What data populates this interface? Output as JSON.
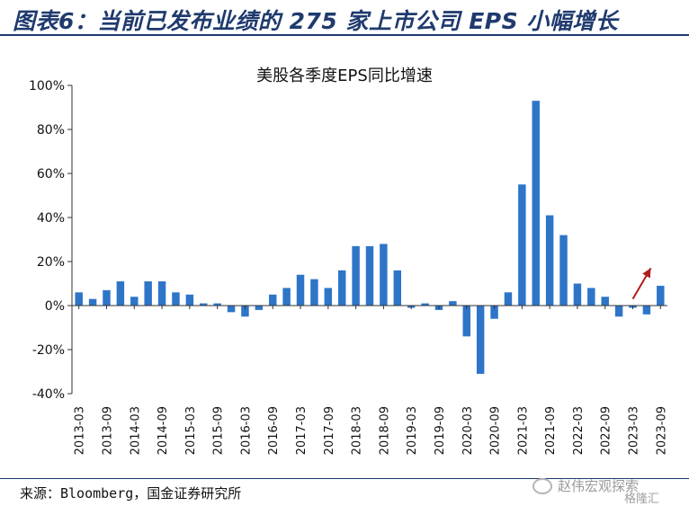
{
  "header": {
    "title": "图表6：当前已发布业绩的 275 家上市公司 EPS 小幅增长"
  },
  "chart_data": {
    "type": "bar",
    "title": "美股各季度EPS同比增速",
    "xlabel": "",
    "ylabel": "",
    "ylim": [
      -40,
      100
    ],
    "yticks": [
      "100%",
      "80%",
      "60%",
      "40%",
      "20%",
      "0%",
      "-20%",
      "-40%"
    ],
    "ytick_values": [
      100,
      80,
      60,
      40,
      20,
      0,
      -20,
      -40
    ],
    "categories": [
      "2013-03",
      "2013-06",
      "2013-09",
      "2013-12",
      "2014-03",
      "2014-06",
      "2014-09",
      "2014-12",
      "2015-03",
      "2015-06",
      "2015-09",
      "2015-12",
      "2016-03",
      "2016-06",
      "2016-09",
      "2016-12",
      "2017-03",
      "2017-06",
      "2017-09",
      "2017-12",
      "2018-03",
      "2018-06",
      "2018-09",
      "2018-12",
      "2019-03",
      "2019-06",
      "2019-09",
      "2019-12",
      "2020-03",
      "2020-06",
      "2020-09",
      "2020-12",
      "2021-03",
      "2021-06",
      "2021-09",
      "2021-12",
      "2022-03",
      "2022-06",
      "2022-09",
      "2022-12",
      "2023-03",
      "2023-06",
      "2023-09"
    ],
    "tick_labels": [
      "2013-03",
      "2013-09",
      "2014-03",
      "2014-09",
      "2015-03",
      "2015-09",
      "2016-03",
      "2016-09",
      "2017-03",
      "2017-09",
      "2018-03",
      "2018-09",
      "2019-03",
      "2019-09",
      "2020-03",
      "2020-09",
      "2021-03",
      "2021-09",
      "2022-03",
      "2022-09",
      "2023-03",
      "2023-09"
    ],
    "values": [
      6,
      3,
      7,
      11,
      4,
      11,
      11,
      6,
      5,
      1,
      1,
      -3,
      -5,
      -2,
      5,
      8,
      14,
      12,
      8,
      16,
      27,
      27,
      28,
      16,
      -1,
      1,
      -2,
      2,
      -14,
      -31,
      -6,
      6,
      55,
      93,
      41,
      32,
      10,
      8,
      4,
      -5,
      -1,
      -4,
      9
    ],
    "bar_color": "#2e75c8",
    "arrow_color": "#b01c1c",
    "grid": false
  },
  "footer": {
    "source": "来源：Bloomberg，国金证券研究所",
    "watermark_text": "赵伟宏观探索",
    "watermark_sub": "格隆汇"
  }
}
